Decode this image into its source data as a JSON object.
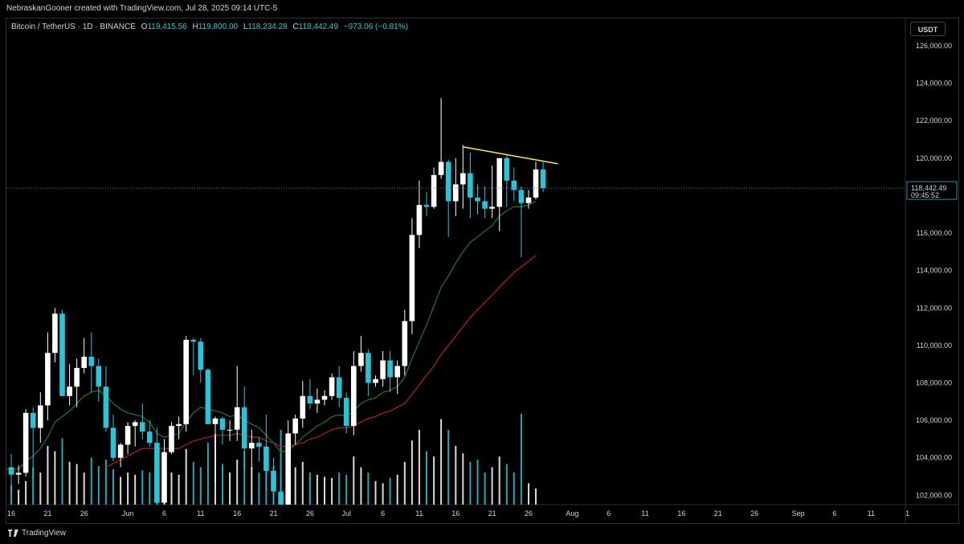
{
  "header": {
    "created_by": "NebraskanGooner created with TradingView.com, Jul 28, 2025 09:14 UTC-5"
  },
  "symbol": {
    "name": "Bitcoin / TetherUS · 1D · BINANCE",
    "open_label": "O",
    "open": "119,415.56",
    "high_label": "H",
    "high": "119,800.00",
    "low_label": "L",
    "low": "118,234.28",
    "close_label": "C",
    "close": "118,442.49",
    "change": "−973.06 (−0.81%)"
  },
  "currency_button": "USDT",
  "price_tag": {
    "price": "118,442.49",
    "countdown": "09:45:52"
  },
  "footer": {
    "brand": "TradingView"
  },
  "colors": {
    "up": "#ffffff",
    "down": "#26c6da",
    "ema_fast": "#1b7a2e",
    "ema_slow": "#b71c1c",
    "trendline": "#ffeb3b",
    "price_line": "#2a8fa8"
  },
  "chart_data": {
    "type": "candlestick",
    "interval": "1D",
    "ylim": [
      101500,
      127500
    ],
    "y_ticks": [
      "102,000.00",
      "104,000.00",
      "106,000.00",
      "108,000.00",
      "110,000.00",
      "112,000.00",
      "114,000.00",
      "116,000.00",
      "118,000.00",
      "120,000.00",
      "122,000.00",
      "124,000.00",
      "126,000.00"
    ],
    "y_tick_values": [
      102000,
      104000,
      106000,
      108000,
      110000,
      112000,
      114000,
      116000,
      118000,
      120000,
      122000,
      124000,
      126000
    ],
    "x_ticks": [
      {
        "label": "16",
        "date": "2025-05-16"
      },
      {
        "label": "21",
        "date": "2025-05-21"
      },
      {
        "label": "26",
        "date": "2025-05-26"
      },
      {
        "label": "Jun",
        "date": "2025-06-01"
      },
      {
        "label": "6",
        "date": "2025-06-06"
      },
      {
        "label": "11",
        "date": "2025-06-11"
      },
      {
        "label": "16",
        "date": "2025-06-16"
      },
      {
        "label": "21",
        "date": "2025-06-21"
      },
      {
        "label": "26",
        "date": "2025-06-26"
      },
      {
        "label": "Jul",
        "date": "2025-07-01"
      },
      {
        "label": "6",
        "date": "2025-07-06"
      },
      {
        "label": "11",
        "date": "2025-07-11"
      },
      {
        "label": "16",
        "date": "2025-07-16"
      },
      {
        "label": "21",
        "date": "2025-07-21"
      },
      {
        "label": "26",
        "date": "2025-07-26"
      },
      {
        "label": "Aug",
        "date": "2025-08-01"
      },
      {
        "label": "6",
        "date": "2025-08-06"
      },
      {
        "label": "11",
        "date": "2025-08-11"
      },
      {
        "label": "16",
        "date": "2025-08-16"
      },
      {
        "label": "21",
        "date": "2025-08-21"
      },
      {
        "label": "26",
        "date": "2025-08-26"
      },
      {
        "label": "Sep",
        "date": "2025-09-01"
      },
      {
        "label": "6",
        "date": "2025-09-06"
      },
      {
        "label": "11",
        "date": "2025-09-11"
      },
      {
        "label": "1",
        "date": "2025-09-16"
      }
    ],
    "candles": [
      {
        "d": "2025-05-15",
        "o": 103700,
        "h": 104100,
        "l": 101400,
        "c": 103500
      },
      {
        "d": "2025-05-16",
        "o": 103500,
        "h": 104200,
        "l": 102200,
        "c": 103100
      },
      {
        "d": "2025-05-17",
        "o": 103100,
        "h": 103600,
        "l": 102600,
        "c": 103200
      },
      {
        "d": "2025-05-18",
        "o": 103200,
        "h": 106600,
        "l": 103000,
        "c": 106400
      },
      {
        "d": "2025-05-19",
        "o": 106400,
        "h": 106700,
        "l": 102800,
        "c": 105600
      },
      {
        "d": "2025-05-20",
        "o": 105600,
        "h": 107500,
        "l": 104800,
        "c": 106800
      },
      {
        "d": "2025-05-21",
        "o": 106800,
        "h": 110700,
        "l": 106000,
        "c": 109600
      },
      {
        "d": "2025-05-22",
        "o": 109600,
        "h": 112000,
        "l": 109100,
        "c": 111700
      },
      {
        "d": "2025-05-23",
        "o": 111700,
        "h": 111900,
        "l": 107500,
        "c": 107300
      },
      {
        "d": "2025-05-24",
        "o": 107300,
        "h": 109000,
        "l": 106800,
        "c": 107800
      },
      {
        "d": "2025-05-25",
        "o": 107800,
        "h": 109300,
        "l": 106700,
        "c": 108800
      },
      {
        "d": "2025-05-26",
        "o": 108800,
        "h": 110400,
        "l": 108500,
        "c": 109400
      },
      {
        "d": "2025-05-27",
        "o": 109400,
        "h": 110700,
        "l": 107500,
        "c": 108900
      },
      {
        "d": "2025-05-28",
        "o": 108900,
        "h": 109300,
        "l": 107000,
        "c": 107800
      },
      {
        "d": "2025-05-29",
        "o": 107800,
        "h": 108900,
        "l": 105400,
        "c": 105600
      },
      {
        "d": "2025-05-30",
        "o": 105600,
        "h": 106300,
        "l": 103800,
        "c": 104000
      },
      {
        "d": "2025-05-31",
        "o": 104000,
        "h": 104800,
        "l": 103500,
        "c": 104700
      },
      {
        "d": "2025-06-01",
        "o": 104700,
        "h": 105900,
        "l": 104200,
        "c": 105700
      },
      {
        "d": "2025-06-02",
        "o": 105700,
        "h": 106000,
        "l": 104600,
        "c": 105900
      },
      {
        "d": "2025-06-03",
        "o": 105900,
        "h": 106900,
        "l": 105000,
        "c": 105400
      },
      {
        "d": "2025-06-04",
        "o": 105400,
        "h": 106000,
        "l": 104600,
        "c": 104800
      },
      {
        "d": "2025-06-05",
        "o": 104800,
        "h": 105600,
        "l": 100400,
        "c": 101600
      },
      {
        "d": "2025-06-06",
        "o": 101600,
        "h": 105000,
        "l": 101300,
        "c": 104300
      },
      {
        "d": "2025-06-07",
        "o": 104300,
        "h": 105900,
        "l": 104200,
        "c": 105700
      },
      {
        "d": "2025-06-08",
        "o": 105700,
        "h": 106200,
        "l": 105000,
        "c": 105800
      },
      {
        "d": "2025-06-09",
        "o": 105800,
        "h": 110500,
        "l": 105400,
        "c": 110300
      },
      {
        "d": "2025-06-10",
        "o": 110300,
        "h": 110400,
        "l": 108400,
        "c": 110200
      },
      {
        "d": "2025-06-11",
        "o": 110200,
        "h": 110400,
        "l": 108000,
        "c": 108700
      },
      {
        "d": "2025-06-12",
        "o": 108700,
        "h": 108800,
        "l": 105800,
        "c": 105800
      },
      {
        "d": "2025-06-13",
        "o": 105800,
        "h": 106200,
        "l": 102700,
        "c": 106100
      },
      {
        "d": "2025-06-14",
        "o": 106100,
        "h": 106200,
        "l": 104700,
        "c": 105500
      },
      {
        "d": "2025-06-15",
        "o": 105500,
        "h": 106000,
        "l": 104900,
        "c": 105500
      },
      {
        "d": "2025-06-16",
        "o": 105500,
        "h": 108900,
        "l": 104900,
        "c": 106700
      },
      {
        "d": "2025-06-17",
        "o": 106700,
        "h": 107800,
        "l": 103400,
        "c": 104500
      },
      {
        "d": "2025-06-18",
        "o": 104500,
        "h": 105500,
        "l": 103400,
        "c": 104800
      },
      {
        "d": "2025-06-19",
        "o": 104800,
        "h": 105100,
        "l": 103800,
        "c": 104600
      },
      {
        "d": "2025-06-20",
        "o": 104600,
        "h": 106300,
        "l": 102300,
        "c": 103300
      },
      {
        "d": "2025-06-21",
        "o": 103300,
        "h": 104000,
        "l": 100900,
        "c": 102200
      },
      {
        "d": "2025-06-22",
        "o": 102200,
        "h": 103100,
        "l": 98200,
        "c": 100900
      },
      {
        "d": "2025-06-23",
        "o": 100900,
        "h": 106000,
        "l": 100000,
        "c": 105300
      },
      {
        "d": "2025-06-24",
        "o": 105300,
        "h": 106300,
        "l": 104700,
        "c": 106100
      },
      {
        "d": "2025-06-25",
        "o": 106100,
        "h": 108100,
        "l": 105600,
        "c": 107300
      },
      {
        "d": "2025-06-26",
        "o": 107300,
        "h": 108200,
        "l": 106600,
        "c": 106900
      },
      {
        "d": "2025-06-27",
        "o": 106900,
        "h": 107700,
        "l": 106400,
        "c": 107100
      },
      {
        "d": "2025-06-28",
        "o": 107100,
        "h": 107600,
        "l": 106800,
        "c": 107300
      },
      {
        "d": "2025-06-29",
        "o": 107300,
        "h": 108500,
        "l": 107100,
        "c": 108300
      },
      {
        "d": "2025-06-30",
        "o": 108300,
        "h": 108900,
        "l": 106700,
        "c": 107200
      },
      {
        "d": "2025-07-01",
        "o": 107200,
        "h": 107500,
        "l": 105300,
        "c": 105700
      },
      {
        "d": "2025-07-02",
        "o": 105700,
        "h": 109700,
        "l": 105200,
        "c": 108900
      },
      {
        "d": "2025-07-03",
        "o": 108900,
        "h": 110500,
        "l": 108600,
        "c": 109600
      },
      {
        "d": "2025-07-04",
        "o": 109600,
        "h": 109800,
        "l": 107300,
        "c": 108000
      },
      {
        "d": "2025-07-05",
        "o": 108000,
        "h": 108400,
        "l": 107800,
        "c": 108200
      },
      {
        "d": "2025-07-06",
        "o": 108200,
        "h": 109700,
        "l": 107800,
        "c": 109200
      },
      {
        "d": "2025-07-07",
        "o": 109200,
        "h": 109700,
        "l": 107500,
        "c": 108300
      },
      {
        "d": "2025-07-08",
        "o": 108300,
        "h": 109200,
        "l": 107400,
        "c": 108900
      },
      {
        "d": "2025-07-09",
        "o": 108900,
        "h": 111900,
        "l": 108400,
        "c": 111300
      },
      {
        "d": "2025-07-10",
        "o": 111300,
        "h": 116800,
        "l": 110600,
        "c": 115900
      },
      {
        "d": "2025-07-11",
        "o": 115900,
        "h": 118800,
        "l": 115200,
        "c": 117500
      },
      {
        "d": "2025-07-12",
        "o": 117500,
        "h": 118200,
        "l": 116900,
        "c": 117400
      },
      {
        "d": "2025-07-13",
        "o": 117400,
        "h": 119500,
        "l": 117300,
        "c": 119100
      },
      {
        "d": "2025-07-14",
        "o": 119100,
        "h": 123200,
        "l": 118900,
        "c": 119800
      },
      {
        "d": "2025-07-15",
        "o": 119800,
        "h": 119900,
        "l": 115800,
        "c": 117700
      },
      {
        "d": "2025-07-16",
        "o": 117700,
        "h": 120000,
        "l": 116900,
        "c": 118600
      },
      {
        "d": "2025-07-17",
        "o": 118600,
        "h": 120700,
        "l": 117300,
        "c": 119200
      },
      {
        "d": "2025-07-18",
        "o": 119200,
        "h": 120300,
        "l": 116800,
        "c": 117900
      },
      {
        "d": "2025-07-19",
        "o": 117900,
        "h": 118600,
        "l": 117000,
        "c": 117700
      },
      {
        "d": "2025-07-20",
        "o": 117700,
        "h": 118500,
        "l": 116800,
        "c": 117300
      },
      {
        "d": "2025-07-21",
        "o": 117300,
        "h": 119600,
        "l": 116800,
        "c": 117400
      },
      {
        "d": "2025-07-22",
        "o": 117400,
        "h": 120000,
        "l": 116100,
        "c": 120000
      },
      {
        "d": "2025-07-23",
        "o": 120000,
        "h": 120200,
        "l": 117400,
        "c": 118800
      },
      {
        "d": "2025-07-24",
        "o": 118800,
        "h": 119500,
        "l": 117700,
        "c": 118300
      },
      {
        "d": "2025-07-25",
        "o": 118300,
        "h": 118500,
        "l": 114700,
        "c": 117600
      },
      {
        "d": "2025-07-26",
        "o": 117600,
        "h": 118300,
        "l": 117300,
        "c": 117900
      },
      {
        "d": "2025-07-27",
        "o": 117900,
        "h": 119800,
        "l": 117800,
        "c": 119400
      },
      {
        "d": "2025-07-28",
        "o": 119400,
        "h": 119800,
        "l": 118200,
        "c": 118400
      }
    ],
    "volume": [
      0.1,
      0.18,
      0.14,
      0.22,
      0.35,
      0.3,
      0.55,
      0.5,
      0.62,
      0.4,
      0.38,
      0.3,
      0.44,
      0.36,
      0.42,
      0.33,
      0.26,
      0.3,
      0.28,
      0.32,
      0.3,
      0.48,
      0.4,
      0.3,
      0.28,
      0.52,
      0.4,
      0.35,
      0.58,
      0.66,
      0.38,
      0.3,
      0.42,
      0.5,
      0.35,
      0.3,
      0.38,
      0.36,
      0.7,
      0.45,
      0.35,
      0.4,
      0.3,
      0.28,
      0.26,
      0.25,
      0.3,
      0.28,
      0.45,
      0.35,
      0.3,
      0.22,
      0.2,
      0.25,
      0.28,
      0.4,
      0.6,
      0.7,
      0.5,
      0.45,
      0.8,
      0.7,
      0.55,
      0.48,
      0.4,
      0.42,
      0.3,
      0.35,
      0.45,
      0.38,
      0.3,
      0.85,
      0.2,
      0.15
    ],
    "ema_fast": [
      103400,
      103400,
      103400,
      103800,
      104100,
      104500,
      105100,
      105900,
      106200,
      106500,
      106900,
      107300,
      107500,
      107600,
      107300,
      106900,
      106600,
      106400,
      106300,
      106200,
      105900,
      105300,
      105100,
      105200,
      105300,
      105900,
      106400,
      106700,
      106600,
      106500,
      106400,
      106200,
      106300,
      106000,
      105800,
      105600,
      105200,
      104800,
      104300,
      104400,
      104700,
      105100,
      105400,
      105700,
      105900,
      106200,
      106300,
      106200,
      106500,
      106900,
      107100,
      107200,
      107500,
      107600,
      107800,
      108300,
      109300,
      110200,
      111100,
      112100,
      113100,
      113700,
      114400,
      115000,
      115500,
      115800,
      116100,
      116400,
      116900,
      117200,
      117400,
      117400,
      117500,
      117700
    ],
    "ema_slow": [
      null,
      null,
      null,
      null,
      null,
      null,
      null,
      null,
      null,
      null,
      null,
      null,
      null,
      null,
      103500,
      103700,
      103900,
      104100,
      104300,
      104500,
      104500,
      104500,
      104500,
      104500,
      104500,
      104700,
      104900,
      105000,
      105100,
      105200,
      105200,
      105200,
      105300,
      105200,
      105100,
      105100,
      104900,
      104800,
      104600,
      104600,
      104700,
      104800,
      105000,
      105100,
      105300,
      105500,
      105600,
      105600,
      105700,
      105900,
      106100,
      106200,
      106400,
      106500,
      106700,
      106900,
      107400,
      107900,
      108400,
      108900,
      109500,
      110000,
      110500,
      111000,
      111500,
      111900,
      112300,
      112700,
      113100,
      113500,
      113900,
      114200,
      114500,
      114800
    ],
    "trendline": [
      {
        "d": "2025-07-17",
        "price": 120600
      },
      {
        "d": "2025-07-30",
        "price": 119700
      }
    ]
  }
}
